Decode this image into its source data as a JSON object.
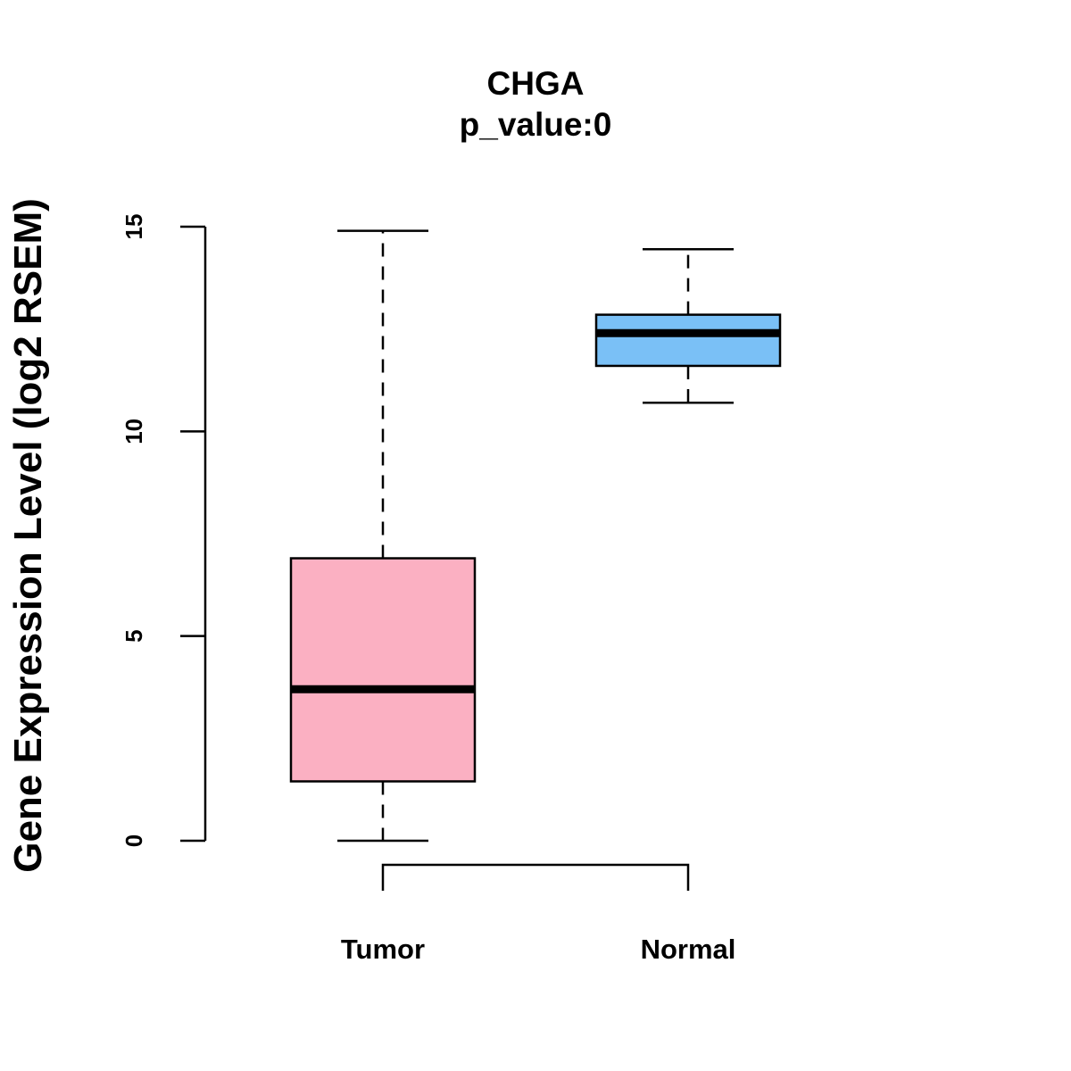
{
  "chart_data": {
    "type": "boxplot",
    "title": "CHGA",
    "subtitle": "p_value:0",
    "xlabel": "",
    "ylabel": "Gene Expression Level (log2 RSEM)",
    "ylim": [
      0,
      15
    ],
    "yticks": [
      "0",
      "5",
      "10",
      "15"
    ],
    "grid": false,
    "comparison_bracket": [
      "Tumor",
      "Normal"
    ],
    "categories": [
      "Tumor",
      "Normal"
    ],
    "series": [
      {
        "name": "Tumor",
        "color": "#fbb0c2",
        "whisker_low": 0,
        "q1": 1.45,
        "median": 3.7,
        "q3": 6.9,
        "whisker_high": 14.9
      },
      {
        "name": "Normal",
        "color": "#7ac0f6",
        "whisker_low": 10.7,
        "q1": 11.6,
        "median": 12.4,
        "q3": 12.85,
        "whisker_high": 14.45
      }
    ]
  }
}
